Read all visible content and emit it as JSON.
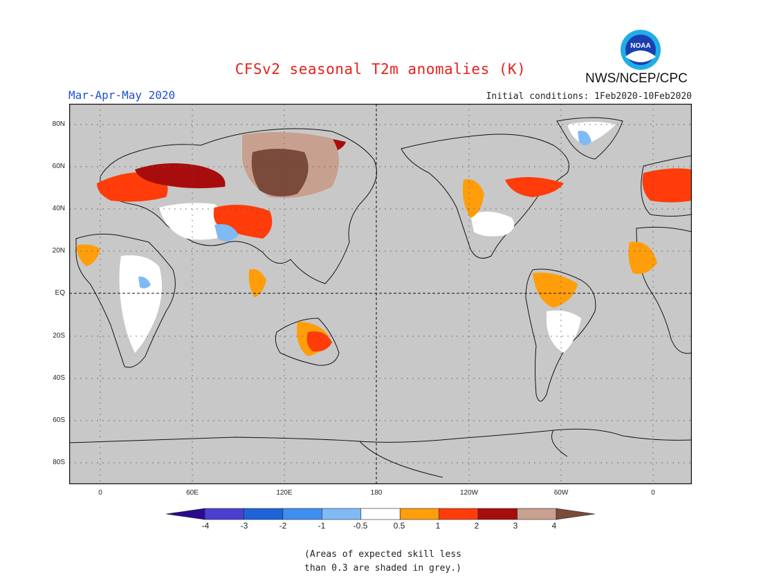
{
  "header": {
    "title": "CFSv2 seasonal T2m anomalies (K)",
    "season": "Mar-Apr-May 2020",
    "initial_conditions": "Initial conditions: 1Feb2020-10Feb2020",
    "agency": "NWS/NCEP/CPC",
    "logo_text": "NOAA"
  },
  "axes": {
    "lat_labels": [
      "80N",
      "60N",
      "40N",
      "20N",
      "EQ",
      "20S",
      "40S",
      "60S",
      "80S"
    ],
    "lon_labels": [
      "0",
      "60E",
      "120E",
      "180",
      "120W",
      "60W",
      "0"
    ]
  },
  "legend": {
    "tick_labels": [
      "-4",
      "-3",
      "-2",
      "-1",
      "-0.5",
      "0.5",
      "1",
      "2",
      "3",
      "4"
    ],
    "colors": [
      "#2a0b8f",
      "#4b3fd0",
      "#1e63d8",
      "#3f8ff0",
      "#7fbaf5",
      "#ffffff",
      "#ff9e0a",
      "#ff3c0a",
      "#a80d0d",
      "#c8a090",
      "#7a4a3a"
    ]
  },
  "footnote": {
    "line1": "(Areas of expected skill less",
    "line2": "than 0.3 are shaded in grey.)"
  },
  "colors": {
    "ocean_grey": "#c8c8c8",
    "title_red": "#e8201a",
    "season_blue": "#1c4fd8"
  }
}
